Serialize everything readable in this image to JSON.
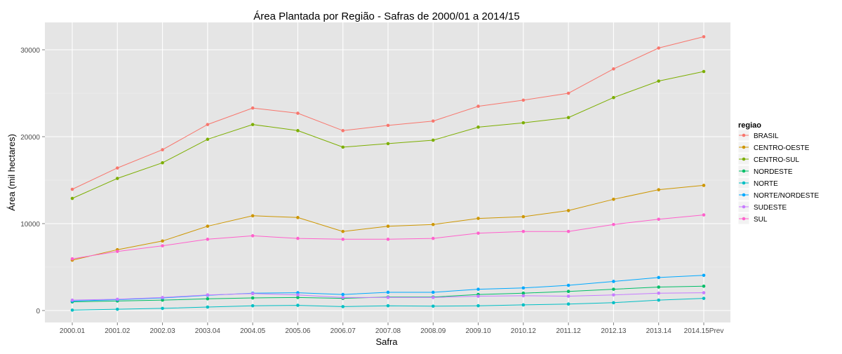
{
  "chart_data": {
    "type": "line",
    "title": "Área Plantada por Região - Safras de 2000/01 a 2014/15",
    "xlabel": "Safra",
    "ylabel": "Área (mil hectares)",
    "categories": [
      "2000.01",
      "2001.02",
      "2002.03",
      "2003.04",
      "2004.05",
      "2005.06",
      "2006.07",
      "2007.08",
      "2008.09",
      "2009.10",
      "2010.12",
      "2011.12",
      "2012.13",
      "2013.14",
      "2014.15Prev"
    ],
    "ylim": [
      -1500,
      33000
    ],
    "yticks": [
      0,
      10000,
      20000,
      30000
    ],
    "ytick_labels": [
      "0",
      "10000",
      "20000",
      "30000"
    ],
    "grid": true,
    "background": "#e5e5e5",
    "legend": {
      "title": "regiao",
      "position": "right"
    },
    "series": [
      {
        "name": "BRASIL",
        "color": "#F8766D",
        "values": [
          13950,
          16400,
          18500,
          21400,
          23300,
          22700,
          20700,
          21300,
          21800,
          23500,
          24200,
          25000,
          27800,
          30200,
          31500
        ]
      },
      {
        "name": "CENTRO-OESTE",
        "color": "#CD9600",
        "values": [
          5800,
          7000,
          8000,
          9700,
          10900,
          10700,
          9100,
          9700,
          9900,
          10600,
          10800,
          11500,
          12800,
          13900,
          14400
        ]
      },
      {
        "name": "CENTRO-SUL",
        "color": "#7CAE00",
        "values": [
          12900,
          15200,
          17000,
          19700,
          21400,
          20700,
          18800,
          19200,
          19600,
          21100,
          21600,
          22200,
          24500,
          26400,
          27500
        ]
      },
      {
        "name": "NORDESTE",
        "color": "#00BE67",
        "values": [
          1000,
          1100,
          1200,
          1350,
          1450,
          1500,
          1400,
          1550,
          1550,
          1850,
          2000,
          2200,
          2450,
          2700,
          2800
        ]
      },
      {
        "name": "NORTE",
        "color": "#00BFC4",
        "values": [
          50,
          150,
          250,
          400,
          550,
          600,
          450,
          550,
          500,
          550,
          650,
          750,
          900,
          1200,
          1400
        ]
      },
      {
        "name": "NORTE/NORDESTE",
        "color": "#00A9FF",
        "values": [
          1100,
          1250,
          1450,
          1750,
          2000,
          2050,
          1850,
          2100,
          2100,
          2450,
          2600,
          2900,
          3350,
          3800,
          4050
        ]
      },
      {
        "name": "SUDESTE",
        "color": "#C77CFF",
        "values": [
          1200,
          1300,
          1500,
          1800,
          1950,
          1800,
          1500,
          1500,
          1500,
          1650,
          1700,
          1650,
          1800,
          2000,
          2050
        ]
      },
      {
        "name": "SUL",
        "color": "#FF61CC",
        "values": [
          5950,
          6800,
          7450,
          8200,
          8600,
          8300,
          8200,
          8200,
          8300,
          8900,
          9100,
          9100,
          9900,
          10500,
          11000
        ]
      }
    ]
  }
}
